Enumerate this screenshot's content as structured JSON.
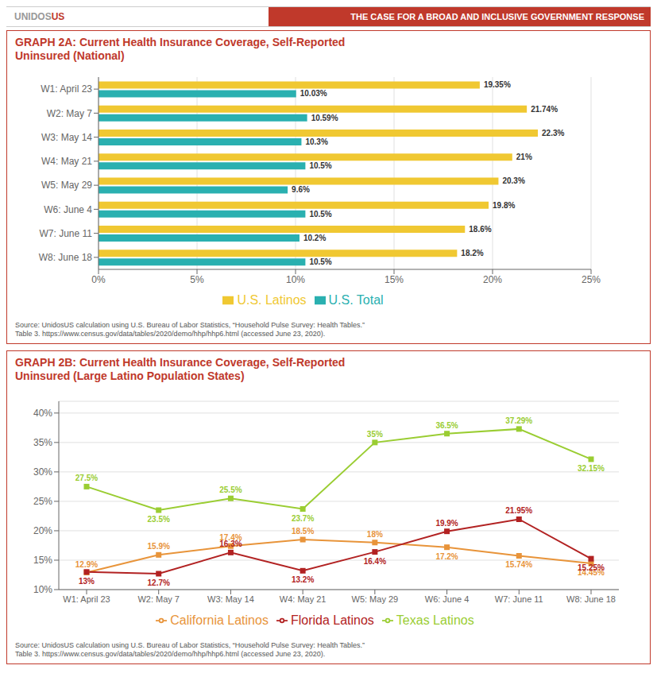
{
  "title": "THE CASE FOR A BROAD AND INCLUSIVE GOVERNMENT RESPONSE",
  "annotations": [
    "UNIDOS",
    "US"
  ],
  "chart_data": [
    {
      "type": "bar",
      "orientation": "horizontal",
      "title": "GRAPH 2A: Current Health Insurance Coverage, Self-Reported\nUninsured (National)",
      "categories": [
        "W8: June 18",
        "W7: June 11",
        "W6: June 4",
        "W5: May 29",
        "W4: May 21",
        "W3: May 14",
        "W2: May 7",
        "W1: April 23"
      ],
      "series": [
        {
          "name": "U.S. Latinos",
          "color": "#f0c832",
          "values": [
            18.2,
            18.6,
            19.8,
            20.3,
            21,
            22.3,
            21.74,
            19.35
          ],
          "value_labels": [
            "18.2%",
            "18.6%",
            "19.8%",
            "20.3%",
            "21%",
            "22.3%",
            "21.74%",
            "19.35%"
          ]
        },
        {
          "name": "U.S. Total",
          "color": "#2ab0b0",
          "values": [
            10.5,
            10.2,
            10.5,
            9.6,
            10.5,
            10.3,
            10.59,
            10.03
          ],
          "value_labels": [
            "10.5%",
            "10.2%",
            "10.5%",
            "9.6%",
            "10.5%",
            "10.3%",
            "10.59%",
            "10.03%"
          ]
        }
      ],
      "xlim": [
        0,
        25
      ],
      "xticks": [
        {
          "value": 0,
          "label": "0%"
        },
        {
          "value": 5,
          "label": "5%"
        },
        {
          "value": 10,
          "label": "10%"
        },
        {
          "value": 15,
          "label": "15%"
        },
        {
          "value": 20,
          "label": "20%"
        },
        {
          "value": 25,
          "label": "25%"
        }
      ],
      "grid": true,
      "legend": "bottom",
      "data_labels": true,
      "annotations": [
        "Source: UnidosUS calculation using U.S. Bureau of Labor Statistics, “Household Pulse Survey: Health Tables.”",
        "Table 3. https://www.census.gov/data/tables/2020/demo/hhp/hhp6.html (accessed June 23, 2020)."
      ]
    },
    {
      "type": "line",
      "title": "GRAPH 2B: Current Health Insurance Coverage, Self-Reported\nUninsured (Large Latino Population States)",
      "categories": [
        "W1: April 23",
        "W2: May 7",
        "W3: May 14",
        "W4: May 21",
        "W5: May 29",
        "W6: June 4",
        "W7: June 11",
        "W8: June 18"
      ],
      "series": [
        {
          "name": "California Latinos",
          "color": "#e8943a",
          "marker": "square",
          "values": [
            12.9,
            15.9,
            17.4,
            18.5,
            18,
            17.2,
            15.74,
            14.45
          ],
          "value_labels": [
            "12.9%",
            "15.9%",
            "17.4%",
            "18.5%",
            "18%",
            "17.2%",
            "15.74%",
            "14.45%"
          ]
        },
        {
          "name": "Florida Latinos",
          "color": "#b22222",
          "marker": "square",
          "values": [
            13,
            12.7,
            16.3,
            13.2,
            16.4,
            19.9,
            21.95,
            15.25
          ],
          "value_labels": [
            "13%",
            "12.7%",
            "16.3%",
            "13.2%",
            "16.4%",
            "19.9%",
            "21.95%",
            "15.25%"
          ]
        },
        {
          "name": "Texas Latinos",
          "color": "#9acd32",
          "marker": "square",
          "values": [
            27.5,
            23.5,
            25.5,
            23.7,
            35,
            36.5,
            37.29,
            32.15
          ],
          "value_labels": [
            "27.5%",
            "23.5%",
            "25.5%",
            "23.7%",
            "35%",
            "36.5%",
            "37.29%",
            "32.15%"
          ]
        }
      ],
      "ylim": [
        10,
        42
      ],
      "yticks": [
        {
          "value": 10,
          "label": "10%"
        },
        {
          "value": 15,
          "label": "15%"
        },
        {
          "value": 20,
          "label": "20%"
        },
        {
          "value": 25,
          "label": "25%"
        },
        {
          "value": 30,
          "label": "30%"
        },
        {
          "value": 35,
          "label": "35%"
        },
        {
          "value": 40,
          "label": "40%"
        }
      ],
      "grid": true,
      "legend": "bottom",
      "data_labels": true,
      "annotations": [
        "Source: UnidosUS calculation using U.S. Bureau of Labor Statistics, “Household Pulse Survey: Health Tables.”",
        "Table 3. https://www.census.gov/data/tables/2020/demo/hhp/hhp6.html (accessed June 23, 2020)."
      ]
    }
  ]
}
